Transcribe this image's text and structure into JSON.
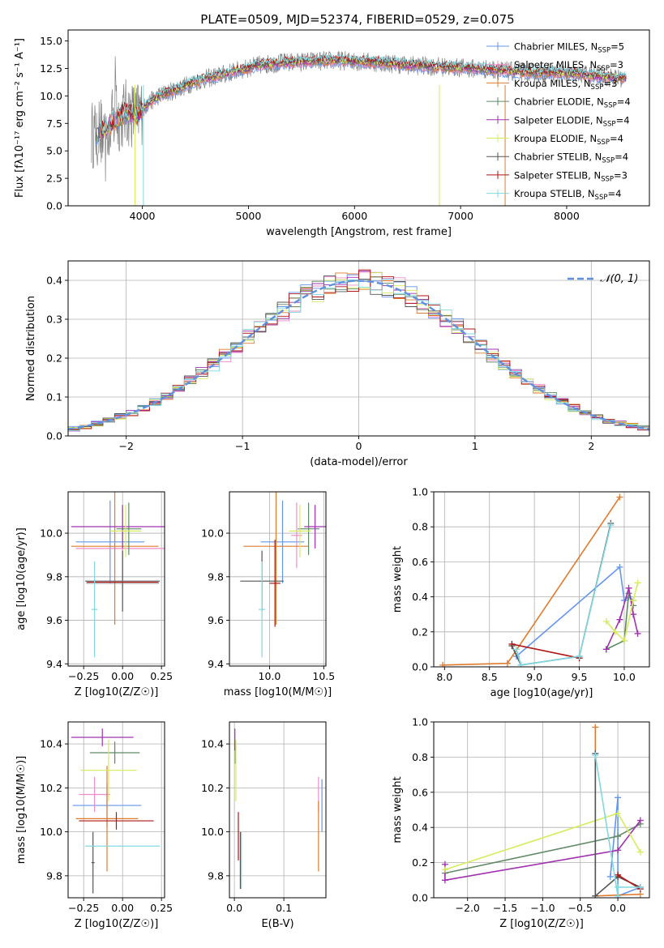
{
  "figure": {
    "title": "PLATE=0509, MJD=52374, FIBERID=0529, z=0.075"
  },
  "colors": {
    "chabrier_miles": "#6495ed",
    "salpeter_miles": "#f08cc8",
    "kroupa_miles": "#e07b2e",
    "chabrier_elodie": "#5f8a65",
    "salpeter_elodie": "#a030b0",
    "kroupa_elodie": "#d6ec5a",
    "chabrier_stelib": "#555555",
    "salpeter_stelib": "#b01515",
    "kroupa_stelib": "#80d8e0",
    "data": "#808080",
    "gaussian": "#6090e0"
  },
  "chart_data": [
    {
      "type": "line",
      "panel": "spectrum",
      "title": "PLATE=0509, MJD=52374, FIBERID=0529, z=0.075",
      "xlabel": "wavelength [Angstrom, rest frame]",
      "ylabel": "Flux [fλ10⁻¹⁷ erg cm⁻² s⁻¹ A⁻¹]",
      "xlim": [
        3300,
        8780
      ],
      "ylim": [
        0,
        16
      ],
      "xticks": [
        4000,
        5000,
        6000,
        7000,
        8000
      ],
      "yticks": [
        0.0,
        2.5,
        5.0,
        7.5,
        10.0,
        12.5,
        15.0
      ],
      "legend_position": "top-right",
      "continuum": {
        "x": [
          3550,
          3650,
          3750,
          3850,
          3950,
          4050,
          4150,
          4300,
          4500,
          4700,
          4900,
          5100,
          5300,
          5500,
          5700,
          5900,
          6100,
          6300,
          6500,
          6700,
          6900,
          7100,
          7300,
          7500,
          7700,
          7900,
          8100,
          8300,
          8500,
          8600
        ],
        "y": [
          6.5,
          7.0,
          7.8,
          8.5,
          8.2,
          9.3,
          10.0,
          10.5,
          11.3,
          11.8,
          12.3,
          12.8,
          13.0,
          13.1,
          13.2,
          13.2,
          13.1,
          13.0,
          12.8,
          12.7,
          12.6,
          12.5,
          12.4,
          12.2,
          12.1,
          12.1,
          12.0,
          11.8,
          11.6,
          11.6
        ]
      },
      "series": [
        {
          "name": "Chabrier MILES",
          "nssp": "5",
          "color": "#6495ed"
        },
        {
          "name": "Salpeter MILES",
          "nssp": "3",
          "color": "#f08cc8"
        },
        {
          "name": "Kroupa MILES",
          "nssp": "3",
          "color": "#e07b2e"
        },
        {
          "name": "Chabrier ELODIE",
          "nssp": "4",
          "color": "#5f8a65"
        },
        {
          "name": "Salpeter ELODIE",
          "nssp": "4",
          "color": "#a030b0"
        },
        {
          "name": "Kroupa ELODIE",
          "nssp": "4",
          "color": "#d6ec5a"
        },
        {
          "name": "Chabrier STELIB",
          "nssp": "4",
          "color": "#555555"
        },
        {
          "name": "Salpeter STELIB",
          "nssp": "3",
          "color": "#b01515"
        },
        {
          "name": "Kroupa STELIB",
          "nssp": "4",
          "color": "#80d8e0"
        }
      ]
    },
    {
      "type": "bar",
      "panel": "residuals",
      "xlabel": "(data-model)/error",
      "ylabel": "Normed distribution",
      "xlim": [
        -2.5,
        2.5
      ],
      "ylim": [
        0,
        0.45
      ],
      "xticks": [
        -2,
        -1,
        0,
        1,
        2
      ],
      "yticks": [
        0.0,
        0.1,
        0.2,
        0.3,
        0.4
      ],
      "legend": "𝒩(0, 1)",
      "legend_position": "top-right",
      "bin_width": 0.1,
      "reference": "standard normal density"
    },
    {
      "type": "scatter",
      "panel": "age_vs_Z",
      "xlabel": "Z [log10(Z/Z☉)]",
      "ylabel": "age  [log10(age/yr)]",
      "xlim": [
        -0.35,
        0.27
      ],
      "ylim": [
        9.39,
        10.19
      ],
      "xticks": [
        -0.25,
        0.0,
        0.25
      ],
      "xticklabels": [
        "−0.25",
        "0.00",
        "0.25"
      ],
      "yticks": [
        9.4,
        9.6,
        9.8,
        10.0
      ],
      "series": [
        {
          "name": "Chabrier MILES",
          "x": -0.08,
          "y": 9.96,
          "xerr": 0.22,
          "yerr": 0.19
        },
        {
          "name": "Salpeter MILES",
          "x": 0.0,
          "y": 9.93,
          "xerr": 0.3,
          "yerr": 0.18
        },
        {
          "name": "Kroupa MILES",
          "x": -0.05,
          "y": 9.94,
          "xerr": 0.28,
          "yerr": 0.36
        },
        {
          "name": "Chabrier ELODIE",
          "x": 0.04,
          "y": 10.02,
          "xerr": 0.08,
          "yerr": 0.12
        },
        {
          "name": "Salpeter ELODIE",
          "x": 0.0,
          "y": 10.03,
          "xerr": 0.33,
          "yerr": 0.1
        },
        {
          "name": "Kroupa ELODIE",
          "x": 0.02,
          "y": 10.01,
          "xerr": 0.1,
          "yerr": 0.12
        },
        {
          "name": "Chabrier STELIB",
          "x": 0.0,
          "y": 9.78,
          "xerr": 0.24,
          "yerr": 0.14
        },
        {
          "name": "Salpeter STELIB",
          "x": 0.0,
          "y": 9.775,
          "xerr": 0.23,
          "yerr": 0.0
        },
        {
          "name": "Kroupa STELIB",
          "x": -0.18,
          "y": 9.65,
          "xerr": 0.02,
          "yerr": 0.22
        }
      ]
    },
    {
      "type": "scatter",
      "panel": "age_vs_mass",
      "xlabel": "mass [log10(M/M☉)]",
      "ylabel": "",
      "xlim": [
        9.63,
        10.52
      ],
      "ylim": [
        9.39,
        10.19
      ],
      "xticks": [
        10.0,
        10.5
      ],
      "yticks": [
        9.4,
        9.6,
        9.8,
        10.0
      ],
      "series": [
        {
          "name": "Chabrier MILES",
          "x": 10.12,
          "y": 9.96,
          "xerr": 0.2,
          "yerr": 0.19
        },
        {
          "name": "Salpeter MILES",
          "x": 10.25,
          "y": 9.99,
          "xerr": 0.05,
          "yerr": 0.15
        },
        {
          "name": "Kroupa MILES",
          "x": 10.06,
          "y": 9.94,
          "xerr": 0.3,
          "yerr": 0.36
        },
        {
          "name": "Chabrier ELODIE",
          "x": 10.36,
          "y": 10.02,
          "xerr": 0.1,
          "yerr": 0.12
        },
        {
          "name": "Salpeter ELODIE",
          "x": 10.42,
          "y": 10.03,
          "xerr": 0.1,
          "yerr": 0.1
        },
        {
          "name": "Kroupa ELODIE",
          "x": 10.28,
          "y": 10.01,
          "xerr": 0.1,
          "yerr": 0.12
        },
        {
          "name": "Chabrier STELIB",
          "x": 9.93,
          "y": 9.78,
          "xerr": 0.2,
          "yerr": 0.14
        },
        {
          "name": "Salpeter STELIB",
          "x": 10.05,
          "y": 9.77,
          "xerr": 0.05,
          "yerr": 0.2
        },
        {
          "name": "Kroupa STELIB",
          "x": 9.93,
          "y": 9.65,
          "xerr": 0.03,
          "yerr": 0.22
        }
      ]
    },
    {
      "type": "line",
      "panel": "mass_weight_vs_age",
      "xlabel": "age  [log10(age/yr)]",
      "ylabel": "mass weight",
      "xlim": [
        7.88,
        10.28
      ],
      "ylim": [
        0,
        1
      ],
      "xticks": [
        8.0,
        8.5,
        9.0,
        9.5,
        10.0
      ],
      "yticks": [
        0.0,
        0.2,
        0.4,
        0.6,
        0.8,
        1.0
      ],
      "series": [
        {
          "name": "Chabrier MILES",
          "x": [
            8.8,
            9.95,
            10.0,
            10.05,
            10.1
          ],
          "y": [
            0.06,
            0.57,
            0.38,
            0.4,
            0.38
          ]
        },
        {
          "name": "Kroupa MILES",
          "x": [
            7.98,
            8.7,
            9.95
          ],
          "y": [
            0.01,
            0.02,
            0.97
          ]
        },
        {
          "name": "Chabrier ELODIE",
          "x": [
            9.8,
            10.0,
            10.05,
            10.1
          ],
          "y": [
            0.1,
            0.15,
            0.42,
            0.35
          ]
        },
        {
          "name": "Salpeter ELODIE",
          "x": [
            9.8,
            9.95,
            10.05,
            10.1,
            10.15
          ],
          "y": [
            0.1,
            0.27,
            0.45,
            0.3,
            0.19
          ]
        },
        {
          "name": "Kroupa ELODIE",
          "x": [
            9.8,
            9.9,
            10.0,
            10.1,
            10.15
          ],
          "y": [
            0.26,
            0.2,
            0.15,
            0.38,
            0.48
          ]
        },
        {
          "name": "Chabrier STELIB",
          "x": [
            8.75,
            8.85,
            9.5,
            9.85
          ],
          "y": [
            0.12,
            0.01,
            0.06,
            0.82
          ]
        },
        {
          "name": "Salpeter STELIB",
          "x": [
            8.75,
            9.5
          ],
          "y": [
            0.13,
            0.05
          ]
        },
        {
          "name": "Kroupa STELIB",
          "x": [
            8.8,
            8.85,
            9.5,
            9.85
          ],
          "y": [
            0.1,
            0.01,
            0.06,
            0.81
          ]
        }
      ]
    },
    {
      "type": "scatter",
      "panel": "mass_vs_Z",
      "xlabel": "Z [log10(Z/Z☉)]",
      "ylabel": "mass [log10(M/M☉)]",
      "xlim": [
        -0.35,
        0.27
      ],
      "ylim": [
        9.7,
        10.5
      ],
      "xticks": [
        -0.25,
        0.0,
        0.25
      ],
      "xticklabels": [
        "−0.25",
        "0.00",
        "0.25"
      ],
      "yticks": [
        9.8,
        10.0,
        10.2,
        10.4
      ],
      "series": [
        {
          "name": "Chabrier MILES",
          "x": -0.1,
          "y": 10.12,
          "xerr": 0.22,
          "yerr": 0.1
        },
        {
          "name": "Salpeter MILES",
          "x": -0.18,
          "y": 10.17,
          "xerr": 0.1,
          "yerr": 0.08
        },
        {
          "name": "Kroupa MILES",
          "x": -0.1,
          "y": 10.06,
          "xerr": 0.2,
          "yerr": 0.24
        },
        {
          "name": "Chabrier ELODIE",
          "x": -0.05,
          "y": 10.36,
          "xerr": 0.16,
          "yerr": 0.05
        },
        {
          "name": "Salpeter ELODIE",
          "x": -0.13,
          "y": 10.43,
          "xerr": 0.2,
          "yerr": 0.04
        },
        {
          "name": "Kroupa ELODIE",
          "x": -0.09,
          "y": 10.28,
          "xerr": 0.18,
          "yerr": 0.14
        },
        {
          "name": "Chabrier STELIB",
          "x": -0.19,
          "y": 9.86,
          "xerr": 0.01,
          "yerr": 0.14
        },
        {
          "name": "Salpeter STELIB",
          "x": -0.04,
          "y": 10.05,
          "xerr": 0.24,
          "yerr": 0.04
        },
        {
          "name": "Kroupa STELIB",
          "x": 0.0,
          "y": 9.935,
          "xerr": 0.24,
          "yerr": 0.0
        }
      ]
    },
    {
      "type": "scatter",
      "panel": "mass_vs_ebv",
      "xlabel": "E(B-V)",
      "ylabel": "",
      "xlim": [
        -0.01,
        0.185
      ],
      "ylim": [
        9.7,
        10.5
      ],
      "xticks": [
        0.0,
        0.1
      ],
      "yticks": [
        9.8,
        10.0,
        10.2,
        10.4
      ],
      "series": [
        {
          "name": "Chabrier MILES",
          "x": 0.177,
          "y": 10.12,
          "xerr": 0.0,
          "yerr": 0.12
        },
        {
          "name": "Salpeter MILES",
          "x": 0.17,
          "y": 10.17,
          "xerr": 0.0,
          "yerr": 0.08
        },
        {
          "name": "Kroupa MILES",
          "x": 0.17,
          "y": 9.98,
          "xerr": 0.0,
          "yerr": 0.16
        },
        {
          "name": "Chabrier ELODIE",
          "x": 0.002,
          "y": 10.36,
          "xerr": 0.0,
          "yerr": 0.05
        },
        {
          "name": "Salpeter ELODIE",
          "x": 0.001,
          "y": 10.42,
          "xerr": 0.0,
          "yerr": 0.05
        },
        {
          "name": "Kroupa ELODIE",
          "x": 0.003,
          "y": 10.28,
          "xerr": 0.0,
          "yerr": 0.14
        },
        {
          "name": "Chabrier STELIB",
          "x": 0.012,
          "y": 9.87,
          "xerr": 0.0,
          "yerr": 0.13
        },
        {
          "name": "Salpeter STELIB",
          "x": 0.008,
          "y": 9.98,
          "xerr": 0.0,
          "yerr": 0.11
        },
        {
          "name": "Kroupa STELIB",
          "x": 0.014,
          "y": 9.87,
          "xerr": 0.0,
          "yerr": 0.13
        }
      ]
    },
    {
      "type": "line",
      "panel": "mass_weight_vs_Z",
      "xlabel": "Z [log10(Z/Z☉)]",
      "ylabel": "mass weight",
      "xlim": [
        -2.45,
        0.42
      ],
      "ylim": [
        0,
        1
      ],
      "xticks": [
        -2.0,
        -1.5,
        -1.0,
        -0.5,
        0.0
      ],
      "xticklabels": [
        "−2.0",
        "−1.5",
        "−1.0",
        "−0.5",
        "0.0"
      ],
      "yticks": [
        0.0,
        0.2,
        0.4,
        0.6,
        0.8,
        1.0
      ],
      "series": [
        {
          "name": "Chabrier MILES",
          "x": [
            -0.1,
            0.0,
            0.0,
            0.3
          ],
          "y": [
            0.12,
            0.57,
            0.01,
            0.06
          ]
        },
        {
          "name": "Kroupa MILES",
          "x": [
            -0.3,
            -0.3,
            0.3
          ],
          "y": [
            0.97,
            0.01,
            0.02
          ]
        },
        {
          "name": "Chabrier ELODIE",
          "x": [
            -2.3,
            0.0,
            0.3
          ],
          "y": [
            0.14,
            0.35,
            0.42
          ]
        },
        {
          "name": "Salpeter ELODIE",
          "x": [
            -2.3,
            -2.3,
            0.0,
            0.3
          ],
          "y": [
            0.19,
            0.1,
            0.27,
            0.44
          ]
        },
        {
          "name": "Kroupa ELODIE",
          "x": [
            -2.3,
            0.0,
            0.3
          ],
          "y": [
            0.16,
            0.48,
            0.26
          ]
        },
        {
          "name": "Chabrier STELIB",
          "x": [
            -0.3,
            -0.3,
            0.0,
            0.3
          ],
          "y": [
            0.82,
            0.01,
            0.12,
            0.06
          ]
        },
        {
          "name": "Salpeter STELIB",
          "x": [
            0.0,
            0.3
          ],
          "y": [
            0.13,
            0.05
          ]
        },
        {
          "name": "Kroupa STELIB",
          "x": [
            -0.3,
            0.0,
            0.0,
            0.3
          ],
          "y": [
            0.81,
            0.01,
            0.06,
            0.06
          ]
        }
      ]
    }
  ]
}
